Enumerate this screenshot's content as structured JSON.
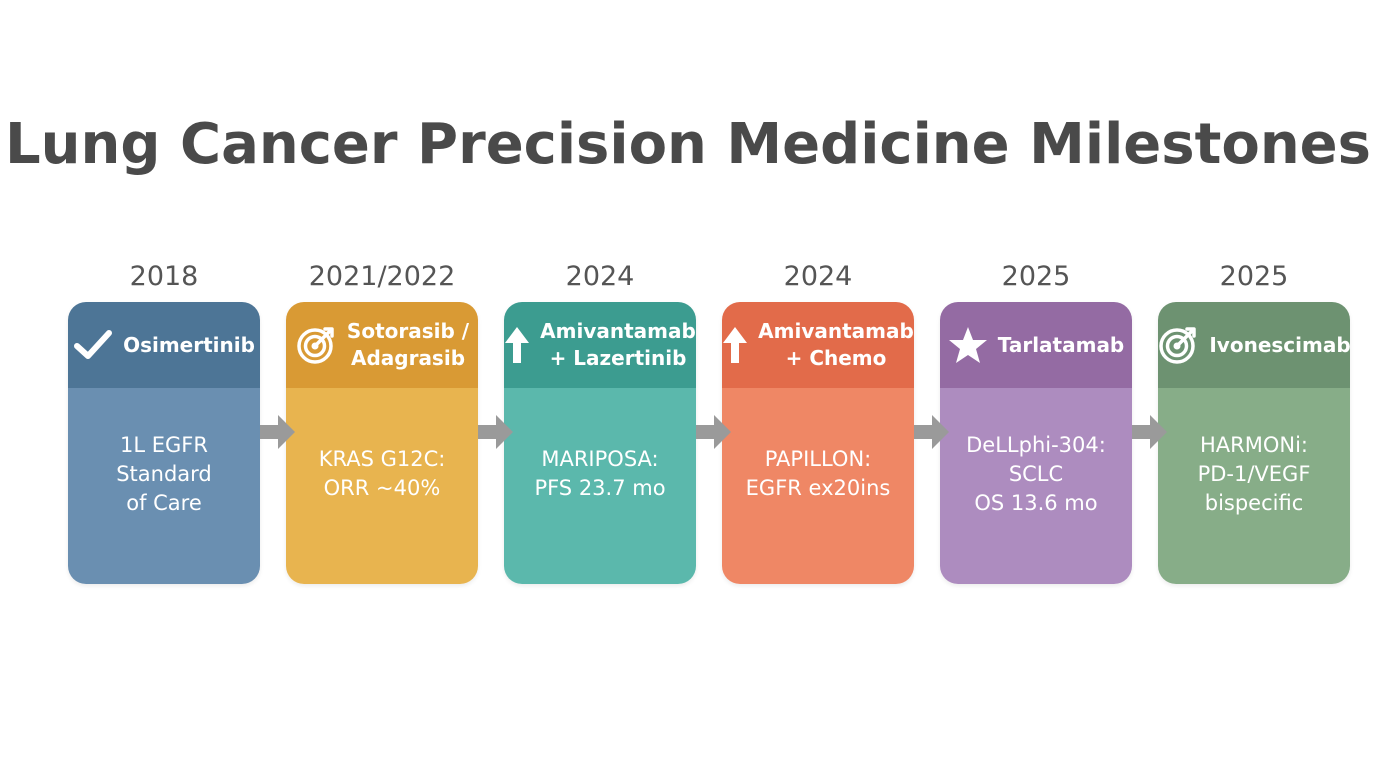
{
  "title": "Lung Cancer Precision Medicine Milestones",
  "milestones": [
    {
      "year": "2018",
      "drug": "Osimertinib",
      "detail": "1L EGFR\nStandard\nof Care",
      "icon": "check-icon",
      "head_color": "#4d7596",
      "body_color": "#6a8fb1"
    },
    {
      "year": "2021/2022",
      "drug": "Sotorasib /\nAdagrasib",
      "detail": "KRAS G12C:\nORR ~40%",
      "icon": "target-icon",
      "head_color": "#d99a34",
      "body_color": "#e8b44f"
    },
    {
      "year": "2024",
      "drug": "Amivantamab\n+ Lazertinib",
      "detail": "MARIPOSA:\nPFS 23.7 mo",
      "icon": "arrow-up-icon",
      "head_color": "#3c9c90",
      "body_color": "#5bb8ac"
    },
    {
      "year": "2024",
      "drug": "Amivantamab\n+ Chemo",
      "detail": "PAPILLON:\nEGFR ex20ins",
      "icon": "arrow-up-icon",
      "head_color": "#e26b4a",
      "body_color": "#ef8765"
    },
    {
      "year": "2025",
      "drug": "Tarlatamab",
      "detail": "DeLLphi-304:\nSCLC\nOS 13.6 mo",
      "icon": "star-icon",
      "head_color": "#946ba3",
      "body_color": "#ad8cbf"
    },
    {
      "year": "2025",
      "drug": "Ivonescimab",
      "detail": "HARMONi:\nPD-1/VEGF\nbispecific",
      "icon": "target-icon",
      "head_color": "#6d9271",
      "body_color": "#87ad88"
    }
  ],
  "arrow_color": "#9a9a9a"
}
